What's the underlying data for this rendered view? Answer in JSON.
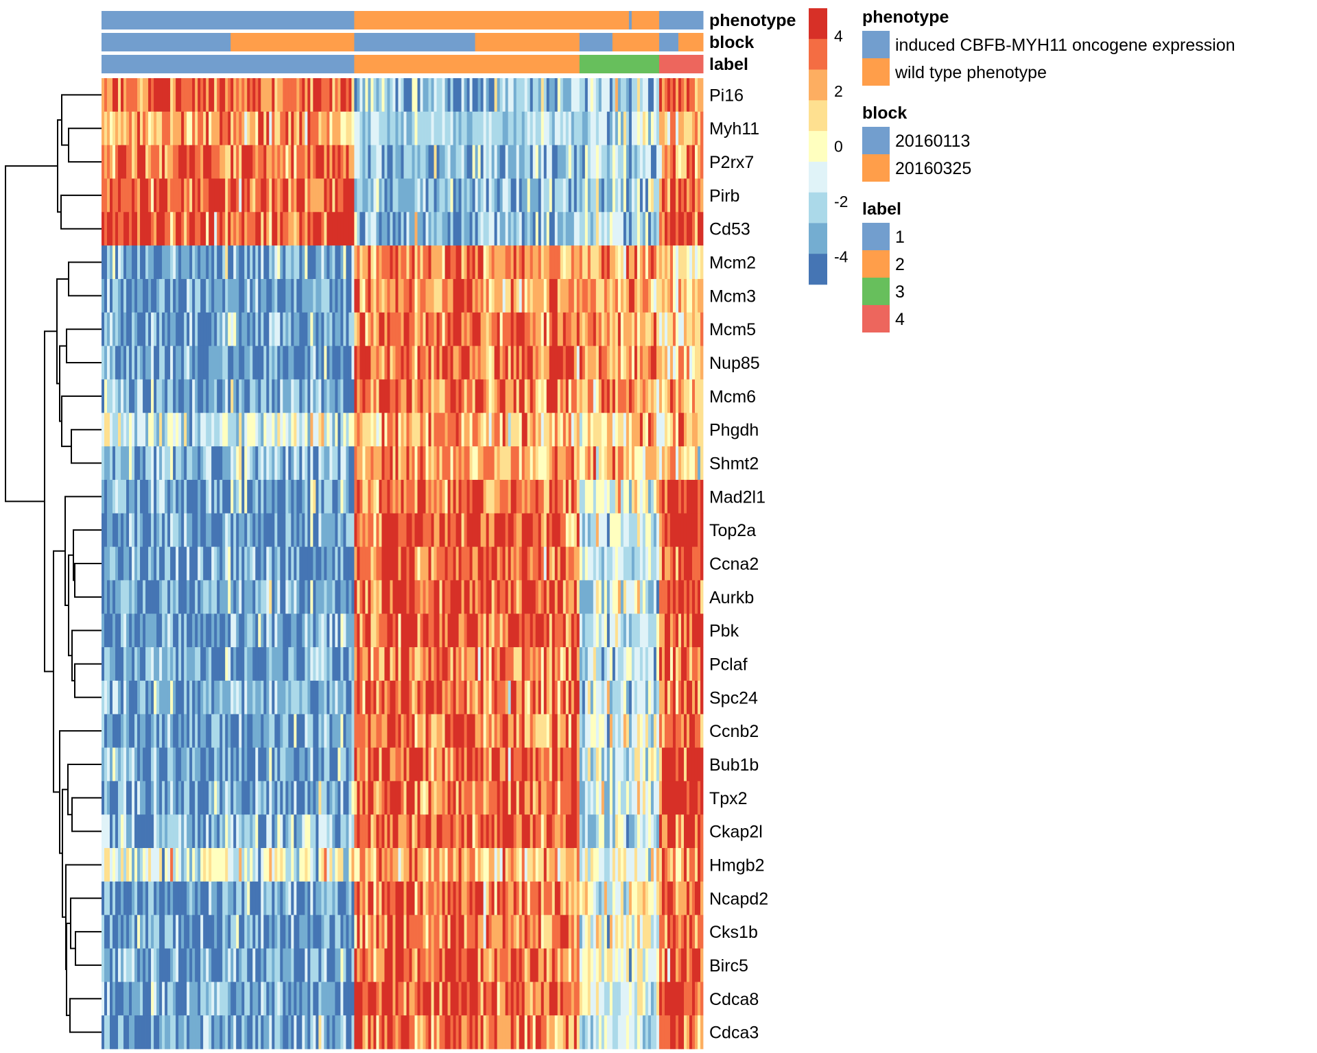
{
  "chart_data": {
    "type": "heatmap",
    "rows": [
      "Pi16",
      "Myh11",
      "P2rx7",
      "Pirb",
      "Cd53",
      "Mcm2",
      "Mcm3",
      "Mcm5",
      "Nup85",
      "Mcm6",
      "Phgdh",
      "Shmt2",
      "Mad2l1",
      "Top2a",
      "Ccna2",
      "Aurkb",
      "Pbk",
      "Pclaf",
      "Spc24",
      "Ccnb2",
      "Bub1b",
      "Tpx2",
      "Ckap2l",
      "Hmgb2",
      "Ncapd2",
      "Cks1b",
      "Birc5",
      "Cdca8",
      "Cdca3"
    ],
    "n_columns": 219,
    "approx_mean_by_label": {
      "labels": [
        "1",
        "2",
        "3",
        "4"
      ],
      "values": [
        [
          3.5,
          -2.7,
          -2.5,
          3
        ],
        [
          2,
          -2,
          -2,
          1
        ],
        [
          3.5,
          -2.7,
          -2.5,
          2.5
        ],
        [
          3.5,
          -2.5,
          -2.3,
          3
        ],
        [
          3.5,
          -2.8,
          -2.2,
          4
        ],
        [
          -3.5,
          3,
          2.5,
          1
        ],
        [
          -3.5,
          2.5,
          2.5,
          1.5
        ],
        [
          -3.5,
          3,
          2,
          1
        ],
        [
          -4,
          3,
          2.5,
          1
        ],
        [
          -3,
          3,
          2.5,
          2
        ],
        [
          -1,
          1.8,
          1.5,
          1
        ],
        [
          -2.5,
          2.5,
          1.5,
          1.2
        ],
        [
          -3.5,
          3,
          -0.5,
          4
        ],
        [
          -3.5,
          3.5,
          -1.5,
          4.5
        ],
        [
          -3.5,
          3.5,
          -2,
          4
        ],
        [
          -3.5,
          3.5,
          -1.5,
          4
        ],
        [
          -3.5,
          3.5,
          -1.5,
          3.5
        ],
        [
          -3.5,
          3,
          -1.5,
          3
        ],
        [
          -3,
          3,
          -1.5,
          3
        ],
        [
          -3.5,
          3,
          -1,
          3.5
        ],
        [
          -3.5,
          3.5,
          -1.5,
          4.5
        ],
        [
          -3.5,
          3.5,
          -1.5,
          4.5
        ],
        [
          -2.5,
          3.5,
          -1.8,
          4
        ],
        [
          -0.5,
          1.8,
          -0.5,
          2
        ],
        [
          -3.5,
          3,
          -0.5,
          3
        ],
        [
          -3.5,
          3,
          -0.5,
          3
        ],
        [
          -3.5,
          3.5,
          -1,
          3
        ],
        [
          -3,
          3.5,
          -1,
          4
        ],
        [
          -3.5,
          3,
          -1,
          3.5
        ]
      ]
    },
    "color_scale": {
      "range": [
        -5,
        5
      ],
      "colors": [
        "#4575B4",
        "#74ADD1",
        "#ABD9E9",
        "#E0F3F8",
        "#FFFFBF",
        "#FEE090",
        "#FDAE61",
        "#F46D43",
        "#D73027"
      ],
      "ticks": [
        "4",
        "2",
        "0",
        "-2",
        "-4"
      ],
      "tick_values": [
        4,
        2,
        0,
        -2,
        -4
      ]
    },
    "annotations": [
      {
        "name": "phenotype",
        "runs": [
          [
            0,
            92
          ],
          [
            1,
            100
          ],
          [
            0,
            1
          ],
          [
            1,
            10
          ],
          [
            0,
            16
          ]
        ]
      },
      {
        "name": "block",
        "runs": [
          [
            0,
            47
          ],
          [
            1,
            45
          ],
          [
            0,
            44
          ],
          [
            1,
            38
          ],
          [
            0,
            12
          ],
          [
            1,
            17
          ],
          [
            0,
            7
          ],
          [
            1,
            9
          ]
        ]
      },
      {
        "name": "label",
        "runs": [
          [
            0,
            92
          ],
          [
            1,
            82
          ],
          [
            2,
            29
          ],
          [
            3,
            16
          ]
        ]
      }
    ],
    "legends": [
      {
        "title": "phenotype",
        "items": [
          {
            "label": "induced CBFB-MYH11 oncogene expression",
            "color": "#729ECE"
          },
          {
            "label": "wild type phenotype",
            "color": "#FF9E4A"
          }
        ]
      },
      {
        "title": "block",
        "items": [
          {
            "label": "20160113",
            "color": "#729ECE"
          },
          {
            "label": "20160325",
            "color": "#FF9E4A"
          }
        ]
      },
      {
        "title": "label",
        "items": [
          {
            "label": "1",
            "color": "#729ECE"
          },
          {
            "label": "2",
            "color": "#FF9E4A"
          },
          {
            "label": "3",
            "color": "#67BF5C"
          },
          {
            "label": "4",
            "color": "#ED665D"
          }
        ]
      }
    ],
    "row_dendrogram": true,
    "grid": false,
    "legend_placement": "right"
  }
}
